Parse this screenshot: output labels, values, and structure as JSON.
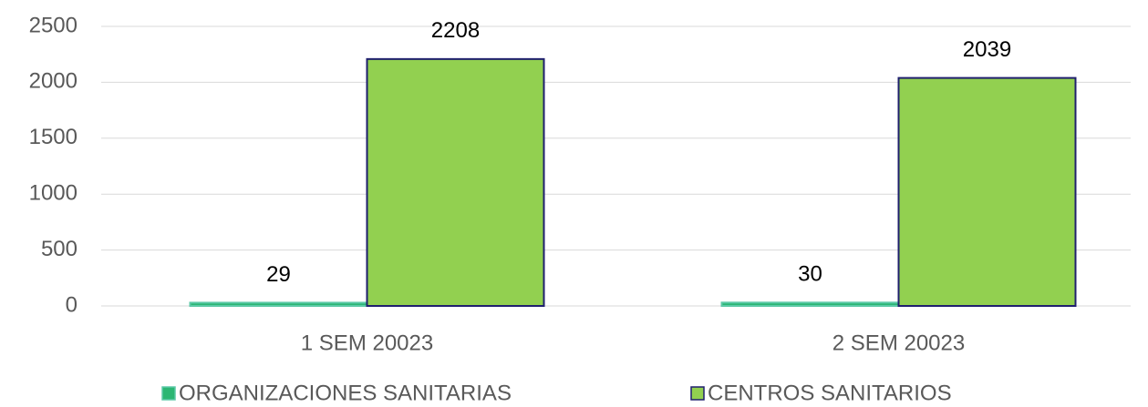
{
  "chart_data": {
    "type": "bar",
    "categories": [
      "1 SEM 20023",
      "2 SEM 20023"
    ],
    "series": [
      {
        "name": "ORGANIZACIONES SANITARIAS",
        "color": "#2bb673",
        "values": [
          29,
          30
        ]
      },
      {
        "name": "CENTROS SANITARIOS",
        "color": "#92d050",
        "values": [
          2208,
          2039
        ]
      }
    ],
    "ylim": [
      0,
      2500
    ],
    "yticks": [
      0,
      500,
      1000,
      1500,
      2000,
      2500
    ],
    "grid": true,
    "legend": "bottom"
  }
}
